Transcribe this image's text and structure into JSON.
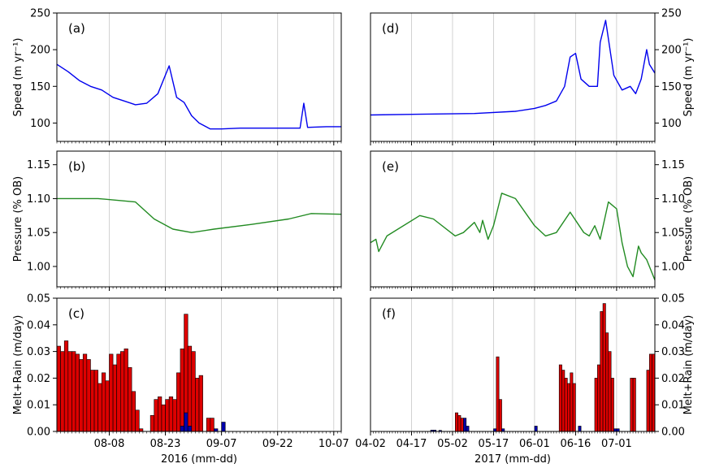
{
  "chart_data": [
    {
      "panel": "(a)",
      "type": "line",
      "color": "#0000ee",
      "ylabel": "Speed (m yr⁻¹)",
      "ylim": [
        75,
        250
      ],
      "yticks": [
        100,
        150,
        200,
        250
      ],
      "xlim": [
        "2016-07-25",
        "2016-10-09"
      ],
      "xticks": [
        "08-08",
        "08-23",
        "09-07",
        "09-22",
        "10-07"
      ],
      "x": [
        "2016-07-25",
        "2016-07-28",
        "2016-07-31",
        "2016-08-03",
        "2016-08-06",
        "2016-08-09",
        "2016-08-12",
        "2016-08-15",
        "2016-08-18",
        "2016-08-21",
        "2016-08-24",
        "2016-08-26",
        "2016-08-28",
        "2016-08-30",
        "2016-09-01",
        "2016-09-04",
        "2016-09-07",
        "2016-09-12",
        "2016-09-20",
        "2016-09-28",
        "2016-09-29",
        "2016-09-30",
        "2016-10-05",
        "2016-10-09"
      ],
      "y": [
        180,
        170,
        158,
        150,
        145,
        135,
        130,
        125,
        127,
        140,
        178,
        135,
        128,
        110,
        100,
        92,
        92,
        93,
        93,
        93,
        127,
        94,
        95,
        95
      ]
    },
    {
      "panel": "(d)",
      "type": "line",
      "color": "#0000ee",
      "ylabel": "Speed (m yr⁻¹)",
      "ylim": [
        75,
        250
      ],
      "yticks": [
        100,
        150,
        200,
        250
      ],
      "xlim": [
        "2017-04-02",
        "2017-07-15"
      ],
      "xticks": [
        "04-02",
        "04-17",
        "05-02",
        "05-17",
        "06-01",
        "06-16",
        "07-01"
      ],
      "x": [
        "2017-04-02",
        "2017-04-20",
        "2017-05-10",
        "2017-05-25",
        "2017-06-01",
        "2017-06-05",
        "2017-06-09",
        "2017-06-12",
        "2017-06-14",
        "2017-06-16",
        "2017-06-18",
        "2017-06-21",
        "2017-06-24",
        "2017-06-25",
        "2017-06-27",
        "2017-06-30",
        "2017-07-03",
        "2017-07-06",
        "2017-07-08",
        "2017-07-10",
        "2017-07-12",
        "2017-07-13",
        "2017-07-15"
      ],
      "y": [
        111,
        112,
        113,
        116,
        120,
        124,
        130,
        150,
        190,
        195,
        160,
        150,
        150,
        210,
        240,
        165,
        145,
        150,
        140,
        160,
        200,
        180,
        168
      ]
    },
    {
      "panel": "(b)",
      "type": "line",
      "color": "#228b22",
      "ylabel": "Pressure (% OB)",
      "ylim": [
        0.97,
        1.17
      ],
      "yticks": [
        1.0,
        1.05,
        1.1,
        1.15
      ],
      "xlim": [
        "2016-07-25",
        "2016-10-09"
      ],
      "xticks": [
        "08-08",
        "08-23",
        "09-07",
        "09-22",
        "10-07"
      ],
      "x": [
        "2016-07-25",
        "2016-08-05",
        "2016-08-15",
        "2016-08-20",
        "2016-08-25",
        "2016-08-30",
        "2016-09-05",
        "2016-09-15",
        "2016-09-25",
        "2016-10-01",
        "2016-10-09"
      ],
      "y": [
        1.1,
        1.1,
        1.095,
        1.07,
        1.055,
        1.05,
        1.055,
        1.062,
        1.07,
        1.078,
        1.077
      ]
    },
    {
      "panel": "(e)",
      "type": "line",
      "color": "#228b22",
      "ylabel": "Pressure (% OB)",
      "ylim": [
        0.97,
        1.17
      ],
      "yticks": [
        1.0,
        1.05,
        1.1,
        1.15
      ],
      "xlim": [
        "2017-04-02",
        "2017-07-15"
      ],
      "xticks": [
        "04-02",
        "04-17",
        "05-02",
        "05-17",
        "06-01",
        "06-16",
        "07-01"
      ],
      "x": [
        "2017-04-02",
        "2017-04-04",
        "2017-04-05",
        "2017-04-08",
        "2017-04-20",
        "2017-04-25",
        "2017-05-03",
        "2017-05-06",
        "2017-05-10",
        "2017-05-12",
        "2017-05-13",
        "2017-05-15",
        "2017-05-17",
        "2017-05-20",
        "2017-05-25",
        "2017-06-01",
        "2017-06-05",
        "2017-06-09",
        "2017-06-14",
        "2017-06-19",
        "2017-06-21",
        "2017-06-23",
        "2017-06-25",
        "2017-06-28",
        "2017-07-01",
        "2017-07-03",
        "2017-07-05",
        "2017-07-07",
        "2017-07-09",
        "2017-07-10",
        "2017-07-12",
        "2017-07-15"
      ],
      "y": [
        1.035,
        1.04,
        1.022,
        1.045,
        1.075,
        1.07,
        1.045,
        1.05,
        1.065,
        1.05,
        1.068,
        1.04,
        1.06,
        1.108,
        1.1,
        1.06,
        1.045,
        1.05,
        1.08,
        1.05,
        1.045,
        1.06,
        1.04,
        1.095,
        1.085,
        1.035,
        1.0,
        0.985,
        1.03,
        1.02,
        1.01,
        0.98
      ]
    },
    {
      "panel": "(c)",
      "type": "bar",
      "series_colors": {
        "melt": "#dd0000",
        "rain": "#0000aa"
      },
      "ylabel": "Melt+Rain (m/day)",
      "ylim": [
        0,
        0.05
      ],
      "yticks": [
        0.0,
        0.01,
        0.02,
        0.03,
        0.04,
        0.05
      ],
      "xlim": [
        "2016-07-25",
        "2016-10-09"
      ],
      "xticks": [
        "08-08",
        "08-23",
        "09-07",
        "09-22",
        "10-07"
      ],
      "xlabel": "2016 (mm-dd)",
      "melt_start": "2016-07-25",
      "melt": [
        0.032,
        0.03,
        0.034,
        0.03,
        0.03,
        0.029,
        0.027,
        0.029,
        0.027,
        0.023,
        0.023,
        0.018,
        0.022,
        0.019,
        0.029,
        0.025,
        0.029,
        0.03,
        0.031,
        0.024,
        0.015,
        0.008,
        0.001,
        0,
        0,
        0.006,
        0.012,
        0.013,
        0.01,
        0.012,
        0.013,
        0.012,
        0.022,
        0.031,
        0.044,
        0.032,
        0.03,
        0.02,
        0.021,
        0,
        0.005,
        0.005
      ],
      "rain": [
        {
          "date": "2016-08-27",
          "value": 0.002
        },
        {
          "date": "2016-08-28",
          "value": 0.007
        },
        {
          "date": "2016-08-29",
          "value": 0.002
        },
        {
          "date": "2016-09-05",
          "value": 0.001
        },
        {
          "date": "2016-09-07",
          "value": 0.0035
        }
      ]
    },
    {
      "panel": "(f)",
      "type": "bar",
      "series_colors": {
        "melt": "#dd0000",
        "rain": "#0000aa"
      },
      "ylabel": "Melt+Rain (m/day)",
      "ylim": [
        0,
        0.05
      ],
      "yticks": [
        0.0,
        0.01,
        0.02,
        0.03,
        0.04,
        0.05
      ],
      "xlim": [
        "2017-04-02",
        "2017-07-15"
      ],
      "xticks": [
        "04-02",
        "04-17",
        "05-02",
        "05-17",
        "06-01",
        "06-16",
        "07-01"
      ],
      "xlabel": "2017 (mm-dd)",
      "melt": [
        {
          "date": "2017-05-03",
          "value": 0.007
        },
        {
          "date": "2017-05-04",
          "value": 0.006
        },
        {
          "date": "2017-05-05",
          "value": 0.005
        },
        {
          "date": "2017-05-18",
          "value": 0.028
        },
        {
          "date": "2017-05-19",
          "value": 0.012
        },
        {
          "date": "2017-06-10",
          "value": 0.025
        },
        {
          "date": "2017-06-11",
          "value": 0.023
        },
        {
          "date": "2017-06-12",
          "value": 0.02
        },
        {
          "date": "2017-06-13",
          "value": 0.018
        },
        {
          "date": "2017-06-14",
          "value": 0.022
        },
        {
          "date": "2017-06-15",
          "value": 0.018
        },
        {
          "date": "2017-06-23",
          "value": 0.02
        },
        {
          "date": "2017-06-24",
          "value": 0.025
        },
        {
          "date": "2017-06-25",
          "value": 0.045
        },
        {
          "date": "2017-06-26",
          "value": 0.048
        },
        {
          "date": "2017-06-27",
          "value": 0.037
        },
        {
          "date": "2017-06-28",
          "value": 0.03
        },
        {
          "date": "2017-06-29",
          "value": 0.02
        },
        {
          "date": "2017-07-06",
          "value": 0.02
        },
        {
          "date": "2017-07-07",
          "value": 0.02
        },
        {
          "date": "2017-07-12",
          "value": 0.023
        },
        {
          "date": "2017-07-13",
          "value": 0.029
        },
        {
          "date": "2017-07-14",
          "value": 0.029
        }
      ],
      "rain": [
        {
          "date": "2017-04-24",
          "value": 0.0005
        },
        {
          "date": "2017-04-25",
          "value": 0.0005
        },
        {
          "date": "2017-04-27",
          "value": 0.0004
        },
        {
          "date": "2017-05-06",
          "value": 0.005
        },
        {
          "date": "2017-05-07",
          "value": 0.002
        },
        {
          "date": "2017-05-17",
          "value": 0.001
        },
        {
          "date": "2017-05-20",
          "value": 0.001
        },
        {
          "date": "2017-06-01",
          "value": 0.002
        },
        {
          "date": "2017-06-17",
          "value": 0.002
        },
        {
          "date": "2017-06-30",
          "value": 0.001
        },
        {
          "date": "2017-07-01",
          "value": 0.001
        }
      ]
    }
  ]
}
